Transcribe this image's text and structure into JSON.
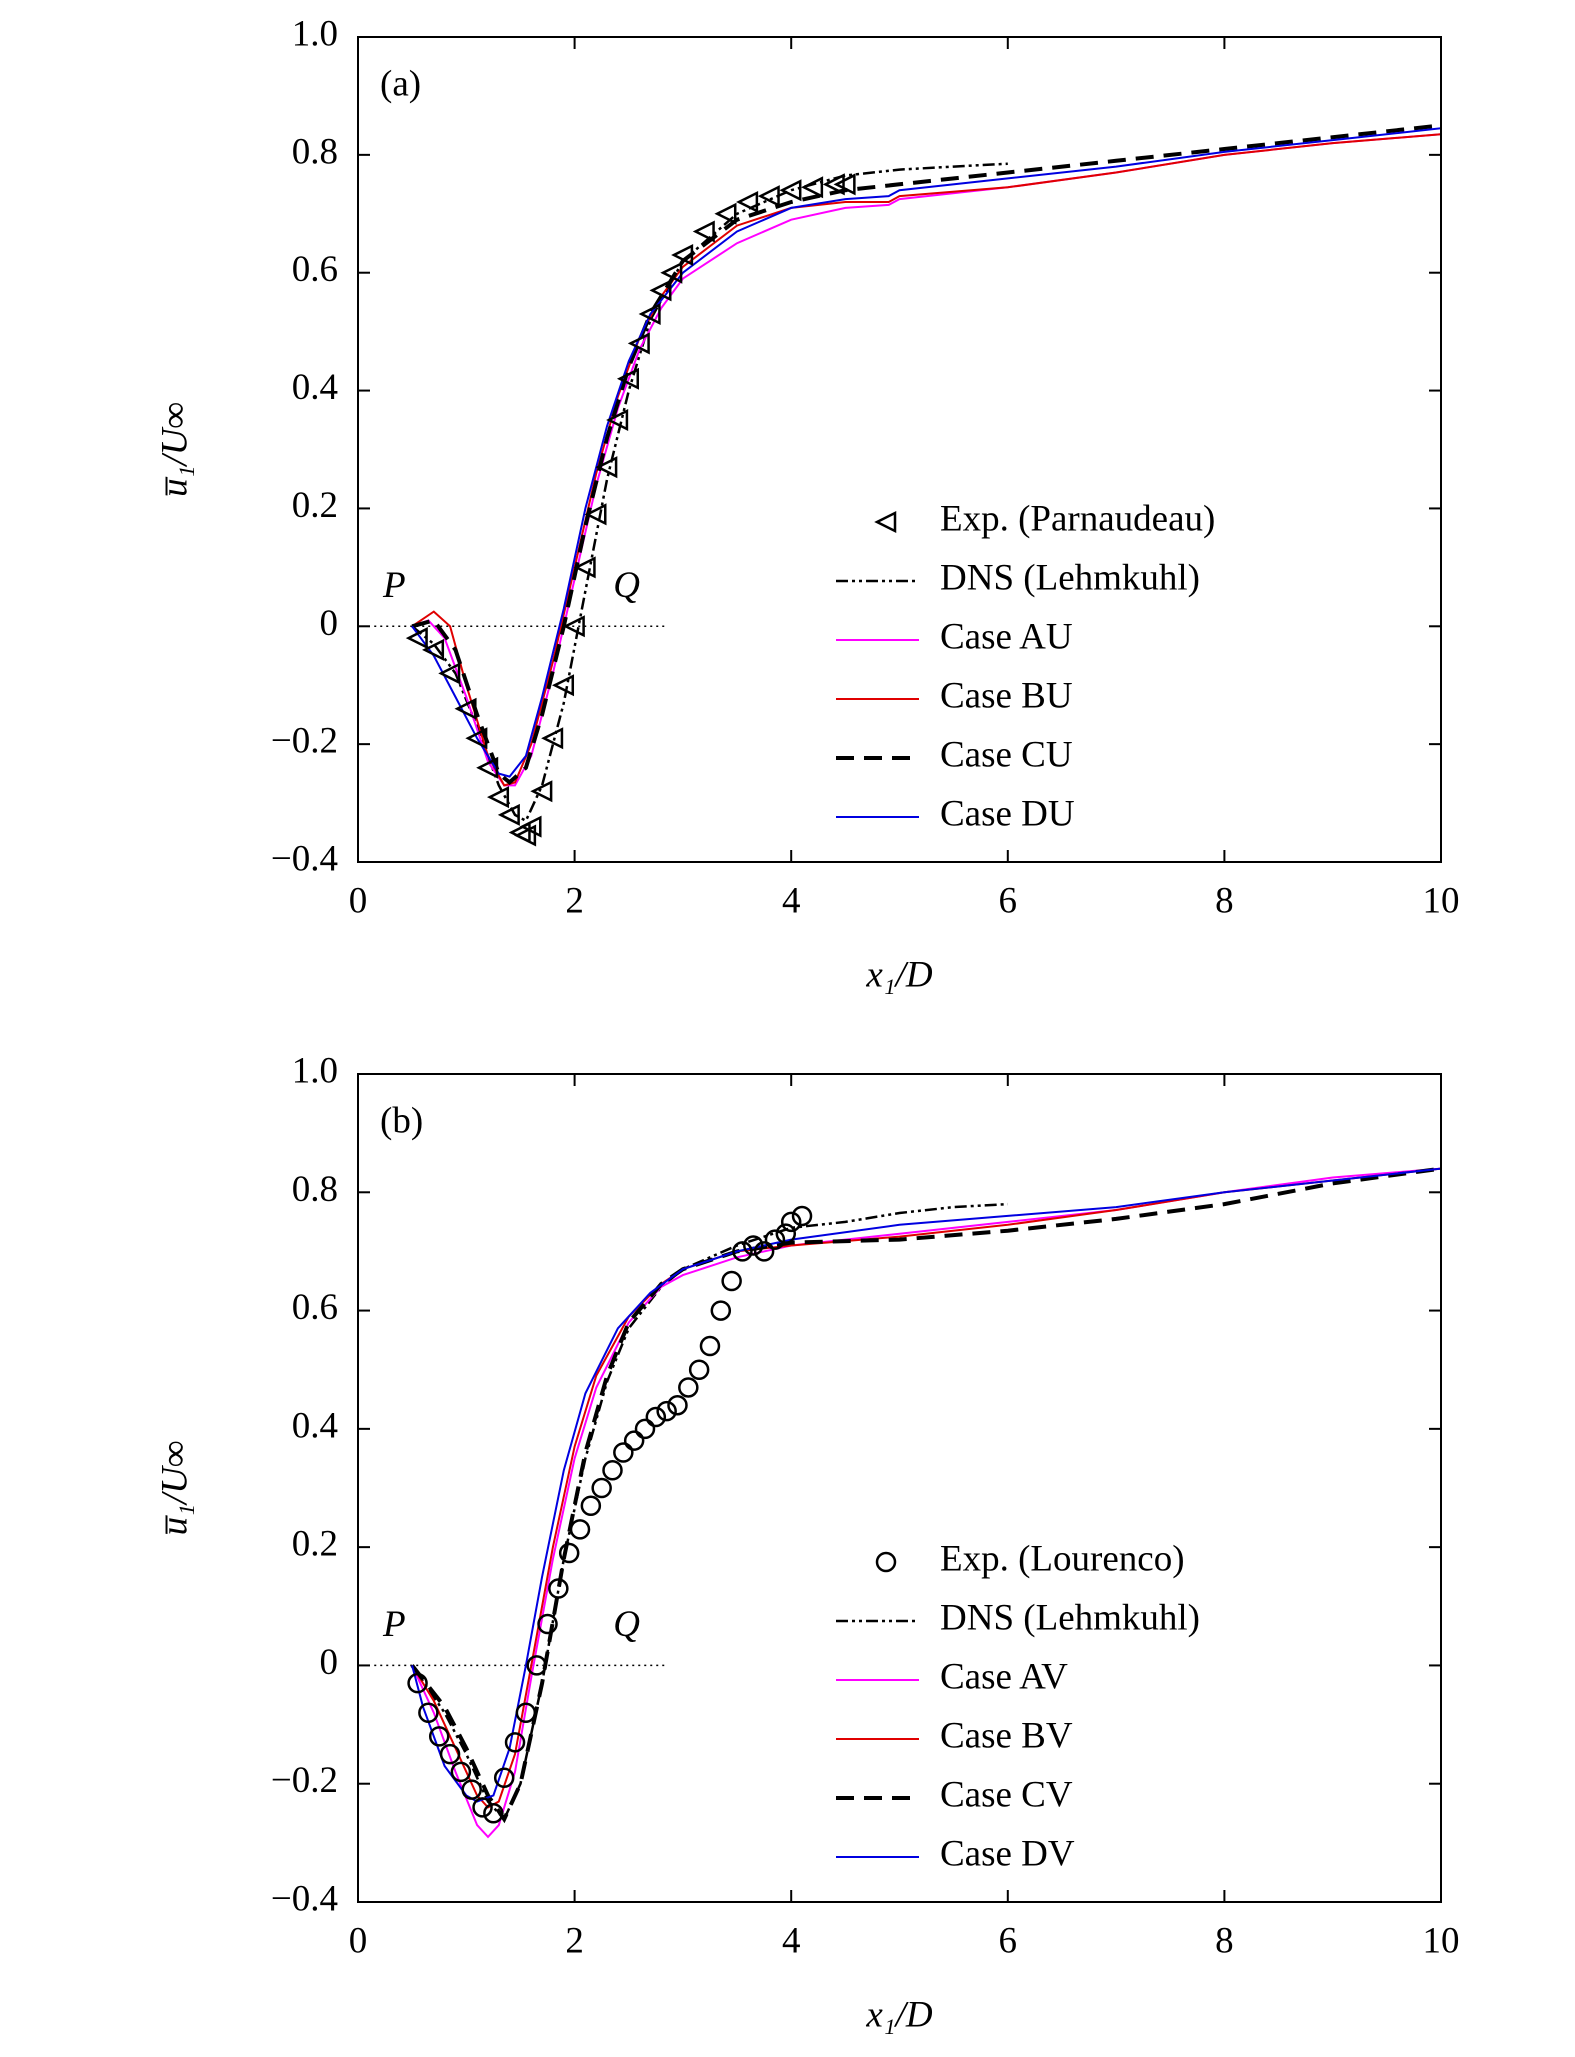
{
  "chart_data": [
    {
      "type": "line",
      "panel_label": "(a)",
      "xlabel": "x₁/D",
      "ylabel": "u̅₁/U∞",
      "xlim": [
        0,
        10
      ],
      "ylim": [
        -0.4,
        1.0
      ],
      "xticks": [
        0,
        2,
        4,
        6,
        8,
        10
      ],
      "yticks": [
        {
          "value": -0.4,
          "label": "−0.4"
        },
        {
          "value": -0.2,
          "label": "−0.2"
        },
        0,
        0.2,
        0.4,
        0.6,
        0.8,
        {
          "value": 1.0,
          "label": "1.0"
        }
      ],
      "annotations": [
        "P",
        "Q"
      ],
      "reference_line": {
        "y": 0,
        "x": [
          0.15,
          2.85
        ],
        "style": "dotted"
      },
      "legend": "lower right",
      "series": [
        {
          "name": "Exp. (Parnaudeau)",
          "color": "#000000",
          "style": "triangle-markers",
          "x": [
            0.55,
            0.7,
            0.85,
            1.0,
            1.1,
            1.2,
            1.3,
            1.4,
            1.5,
            1.55,
            1.6,
            1.7,
            1.8,
            1.9,
            2.0,
            2.1,
            2.2,
            2.3,
            2.4,
            2.5,
            2.6,
            2.7,
            2.8,
            2.9,
            3.0,
            3.2,
            3.4,
            3.6,
            3.8,
            4.0,
            4.2,
            4.4,
            4.5
          ],
          "values": [
            -0.02,
            -0.04,
            -0.08,
            -0.14,
            -0.19,
            -0.24,
            -0.29,
            -0.32,
            -0.35,
            -0.355,
            -0.34,
            -0.28,
            -0.19,
            -0.1,
            0.0,
            0.1,
            0.19,
            0.27,
            0.35,
            0.42,
            0.48,
            0.53,
            0.57,
            0.6,
            0.63,
            0.67,
            0.7,
            0.72,
            0.73,
            0.74,
            0.745,
            0.75,
            0.75
          ]
        },
        {
          "name": "DNS (Lehmkuhl)",
          "color": "#000000",
          "style": "dashdot",
          "x": [
            0.5,
            0.7,
            0.9,
            1.1,
            1.3,
            1.45,
            1.55,
            1.7,
            1.9,
            2.1,
            2.3,
            2.5,
            2.7,
            3.0,
            3.5,
            4.0,
            4.5,
            5.0,
            5.5,
            6.0
          ],
          "values": [
            0,
            -0.03,
            -0.08,
            -0.17,
            -0.27,
            -0.32,
            -0.33,
            -0.27,
            -0.13,
            0.06,
            0.25,
            0.4,
            0.52,
            0.62,
            0.7,
            0.74,
            0.765,
            0.775,
            0.78,
            0.785
          ]
        },
        {
          "name": "Case AU",
          "color": "#ff00ff",
          "style": "solid",
          "x": [
            0.5,
            0.65,
            0.8,
            1.0,
            1.2,
            1.35,
            1.45,
            1.6,
            1.8,
            2.0,
            2.2,
            2.4,
            2.6,
            2.8,
            3.0,
            3.5,
            4.0,
            4.5,
            4.9,
            5.0,
            6,
            7,
            8,
            9,
            10
          ],
          "values": [
            0,
            0.01,
            -0.02,
            -0.12,
            -0.23,
            -0.27,
            -0.27,
            -0.22,
            -0.08,
            0.08,
            0.24,
            0.37,
            0.47,
            0.54,
            0.59,
            0.65,
            0.69,
            0.71,
            0.715,
            0.725,
            0.745,
            0.77,
            0.8,
            0.82,
            0.835
          ]
        },
        {
          "name": "Case BU",
          "color": "#e00000",
          "style": "solid",
          "x": [
            0.5,
            0.7,
            0.85,
            1.0,
            1.2,
            1.35,
            1.45,
            1.6,
            1.8,
            2.0,
            2.2,
            2.4,
            2.6,
            2.8,
            3.0,
            3.5,
            4.0,
            4.5,
            4.9,
            5.0,
            6,
            7,
            8,
            9,
            10
          ],
          "values": [
            0,
            0.025,
            0.0,
            -0.1,
            -0.22,
            -0.27,
            -0.265,
            -0.2,
            -0.06,
            0.1,
            0.26,
            0.39,
            0.49,
            0.56,
            0.61,
            0.68,
            0.71,
            0.72,
            0.72,
            0.73,
            0.745,
            0.77,
            0.8,
            0.82,
            0.835
          ]
        },
        {
          "name": "Case CU",
          "color": "#000000",
          "style": "dashed",
          "x": [
            0.5,
            0.7,
            0.9,
            1.1,
            1.3,
            1.4,
            1.55,
            1.7,
            1.9,
            2.1,
            2.3,
            2.5,
            2.7,
            3.0,
            3.5,
            4.0,
            4.5,
            5,
            6,
            7,
            8,
            9,
            10
          ],
          "values": [
            0,
            0.01,
            -0.04,
            -0.15,
            -0.25,
            -0.265,
            -0.24,
            -0.15,
            0.0,
            0.17,
            0.32,
            0.44,
            0.53,
            0.62,
            0.69,
            0.72,
            0.74,
            0.75,
            0.77,
            0.79,
            0.81,
            0.83,
            0.85
          ]
        },
        {
          "name": "Case DU",
          "color": "#0000e0",
          "style": "solid",
          "x": [
            0.5,
            0.7,
            0.9,
            1.1,
            1.3,
            1.4,
            1.55,
            1.7,
            1.9,
            2.1,
            2.3,
            2.5,
            2.7,
            3.0,
            3.5,
            4.0,
            4.5,
            4.9,
            5.0,
            6,
            7,
            8,
            9,
            10
          ],
          "values": [
            0,
            -0.05,
            -0.12,
            -0.19,
            -0.25,
            -0.255,
            -0.22,
            -0.12,
            0.03,
            0.2,
            0.34,
            0.45,
            0.53,
            0.6,
            0.67,
            0.71,
            0.725,
            0.73,
            0.74,
            0.76,
            0.78,
            0.805,
            0.825,
            0.845
          ]
        }
      ]
    },
    {
      "type": "line",
      "panel_label": "(b)",
      "xlabel": "x₁/D",
      "ylabel": "u̅₁/U∞",
      "xlim": [
        0,
        10
      ],
      "ylim": [
        -0.4,
        1.0
      ],
      "xticks": [
        0,
        2,
        4,
        6,
        8,
        10
      ],
      "yticks": [
        {
          "value": -0.4,
          "label": "−0.4"
        },
        {
          "value": -0.2,
          "label": "−0.2"
        },
        0,
        0.2,
        0.4,
        0.6,
        0.8,
        {
          "value": 1.0,
          "label": "1.0"
        }
      ],
      "annotations": [
        "P",
        "Q"
      ],
      "reference_line": {
        "y": 0,
        "x": [
          0.15,
          2.85
        ],
        "style": "dotted"
      },
      "legend": "lower right",
      "series": [
        {
          "name": "Exp. (Lourenco)",
          "color": "#000000",
          "style": "circle-markers",
          "x": [
            0.55,
            0.65,
            0.75,
            0.85,
            0.95,
            1.05,
            1.15,
            1.25,
            1.35,
            1.45,
            1.55,
            1.65,
            1.75,
            1.85,
            1.95,
            2.05,
            2.15,
            2.25,
            2.35,
            2.45,
            2.55,
            2.65,
            2.75,
            2.85,
            2.95,
            3.05,
            3.15,
            3.25,
            3.35,
            3.45,
            3.55,
            3.65,
            3.75,
            3.85,
            3.95,
            4.0,
            4.1
          ],
          "values": [
            -0.03,
            -0.08,
            -0.12,
            -0.15,
            -0.18,
            -0.21,
            -0.24,
            -0.25,
            -0.19,
            -0.13,
            -0.08,
            0.0,
            0.07,
            0.13,
            0.19,
            0.23,
            0.27,
            0.3,
            0.33,
            0.36,
            0.38,
            0.4,
            0.42,
            0.43,
            0.44,
            0.47,
            0.5,
            0.54,
            0.6,
            0.65,
            0.7,
            0.71,
            0.7,
            0.72,
            0.73,
            0.75,
            0.76
          ]
        },
        {
          "name": "DNS (Lehmkuhl)",
          "color": "#000000",
          "style": "dashdot",
          "x": [
            0.5,
            0.8,
            1.0,
            1.2,
            1.35,
            1.5,
            1.7,
            1.9,
            2.1,
            2.3,
            2.5,
            2.8,
            3.0,
            3.5,
            4.0,
            4.5,
            5,
            5.5,
            6
          ],
          "values": [
            0,
            -0.08,
            -0.15,
            -0.23,
            -0.26,
            -0.2,
            -0.03,
            0.18,
            0.35,
            0.48,
            0.57,
            0.64,
            0.67,
            0.71,
            0.74,
            0.75,
            0.765,
            0.775,
            0.78
          ]
        },
        {
          "name": "Case AV",
          "color": "#ff00ff",
          "style": "solid",
          "x": [
            0.5,
            0.7,
            0.9,
            1.1,
            1.2,
            1.3,
            1.45,
            1.6,
            1.8,
            2.0,
            2.2,
            2.5,
            2.8,
            3.0,
            3.5,
            4,
            5,
            6,
            7,
            8,
            9,
            10
          ],
          "values": [
            0,
            -0.08,
            -0.18,
            -0.27,
            -0.29,
            -0.27,
            -0.18,
            -0.02,
            0.18,
            0.35,
            0.47,
            0.58,
            0.64,
            0.66,
            0.69,
            0.71,
            0.73,
            0.75,
            0.77,
            0.8,
            0.825,
            0.84
          ]
        },
        {
          "name": "Case BV",
          "color": "#e00000",
          "style": "solid",
          "x": [
            0.5,
            0.7,
            0.9,
            1.1,
            1.2,
            1.3,
            1.45,
            1.6,
            1.8,
            2.0,
            2.2,
            2.5,
            2.8,
            3.0,
            3.5,
            4,
            5,
            6,
            7,
            8,
            9,
            10
          ],
          "values": [
            0,
            -0.06,
            -0.14,
            -0.22,
            -0.24,
            -0.23,
            -0.15,
            0.0,
            0.2,
            0.37,
            0.49,
            0.59,
            0.645,
            0.67,
            0.7,
            0.71,
            0.725,
            0.745,
            0.77,
            0.8,
            0.82,
            0.84
          ]
        },
        {
          "name": "Case CV",
          "color": "#000000",
          "style": "dashed",
          "x": [
            0.5,
            0.8,
            1.0,
            1.2,
            1.35,
            1.5,
            1.7,
            1.9,
            2.1,
            2.3,
            2.5,
            2.8,
            3.0,
            3.5,
            4,
            5,
            6,
            7,
            8,
            9,
            10
          ],
          "values": [
            0,
            -0.07,
            -0.14,
            -0.22,
            -0.26,
            -0.2,
            -0.03,
            0.18,
            0.36,
            0.49,
            0.58,
            0.645,
            0.67,
            0.7,
            0.715,
            0.72,
            0.735,
            0.755,
            0.78,
            0.815,
            0.84
          ]
        },
        {
          "name": "Case DV",
          "color": "#0000e0",
          "style": "solid",
          "x": [
            0.5,
            0.6,
            0.8,
            1.0,
            1.1,
            1.25,
            1.4,
            1.55,
            1.7,
            1.9,
            2.1,
            2.4,
            2.7,
            3.0,
            3.5,
            4,
            5,
            6,
            7,
            8,
            9,
            10
          ],
          "values": [
            0,
            -0.07,
            -0.17,
            -0.22,
            -0.23,
            -0.22,
            -0.14,
            0.0,
            0.15,
            0.33,
            0.46,
            0.57,
            0.63,
            0.67,
            0.7,
            0.72,
            0.745,
            0.76,
            0.775,
            0.8,
            0.82,
            0.84
          ]
        }
      ]
    }
  ]
}
